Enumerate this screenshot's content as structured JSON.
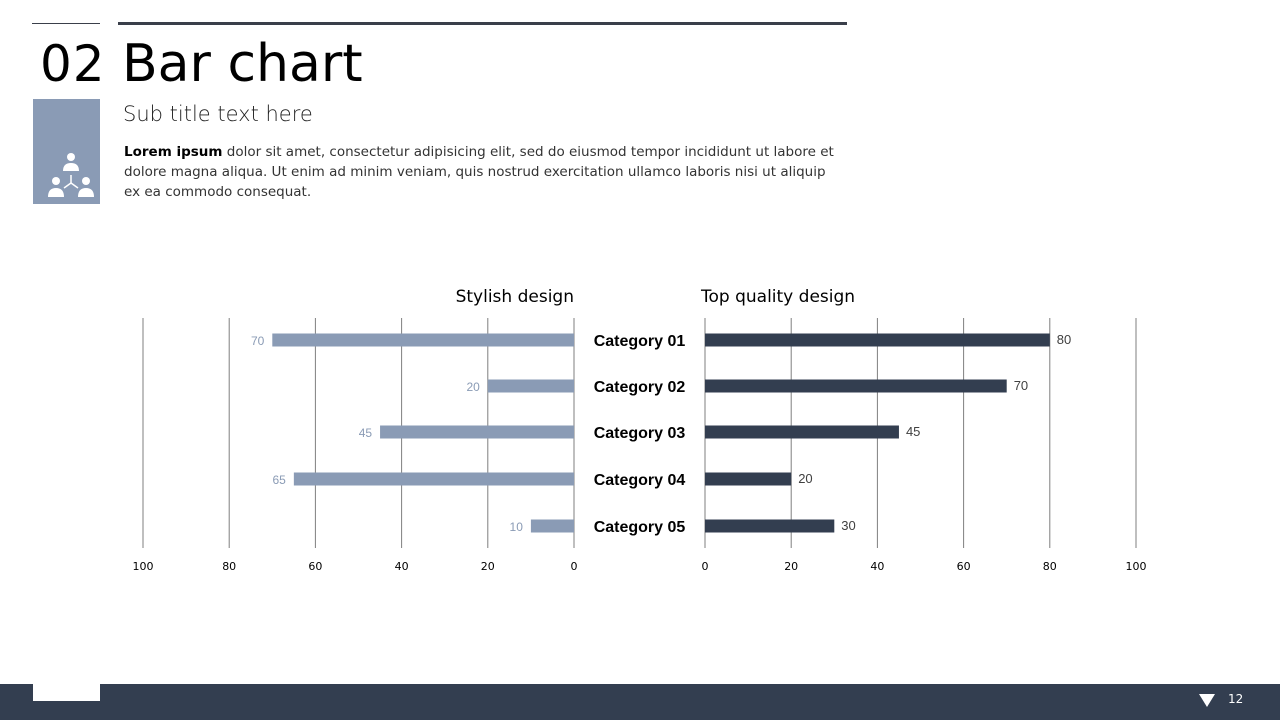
{
  "slide": {
    "section_number": "02",
    "title": "Bar chart",
    "subtitle": "Sub title text here",
    "body_bold": "Lorem ipsum",
    "body_text": " dolor sit amet, consectetur adipisicing elit, sed do eiusmod tempor incididunt ut labore et dolore magna aliqua. Ut enim ad minim veniam, quis nostrud exercitation ullamco laboris nisi ut aliquip ex ea commodo consequat.",
    "icon": "team-hierarchy-icon",
    "page_number": "12"
  },
  "colors": {
    "accent_light": "#8a9bb5",
    "accent_dark": "#333e50"
  },
  "chart_data": {
    "type": "bar",
    "orientation": "horizontal-butterfly",
    "categories": [
      "Category 01",
      "Category 02",
      "Category 03",
      "Category 04",
      "Category 05"
    ],
    "series": [
      {
        "name": "Stylish design",
        "values": [
          70,
          20,
          45,
          65,
          10
        ],
        "side": "left",
        "color": "#8a9bb5"
      },
      {
        "name": "Top quality design",
        "values": [
          80,
          70,
          45,
          20,
          30
        ],
        "side": "right",
        "color": "#333e50"
      }
    ],
    "xlim": [
      0,
      100
    ],
    "xticks": [
      0,
      20,
      40,
      60,
      80,
      100
    ],
    "grid": true
  }
}
